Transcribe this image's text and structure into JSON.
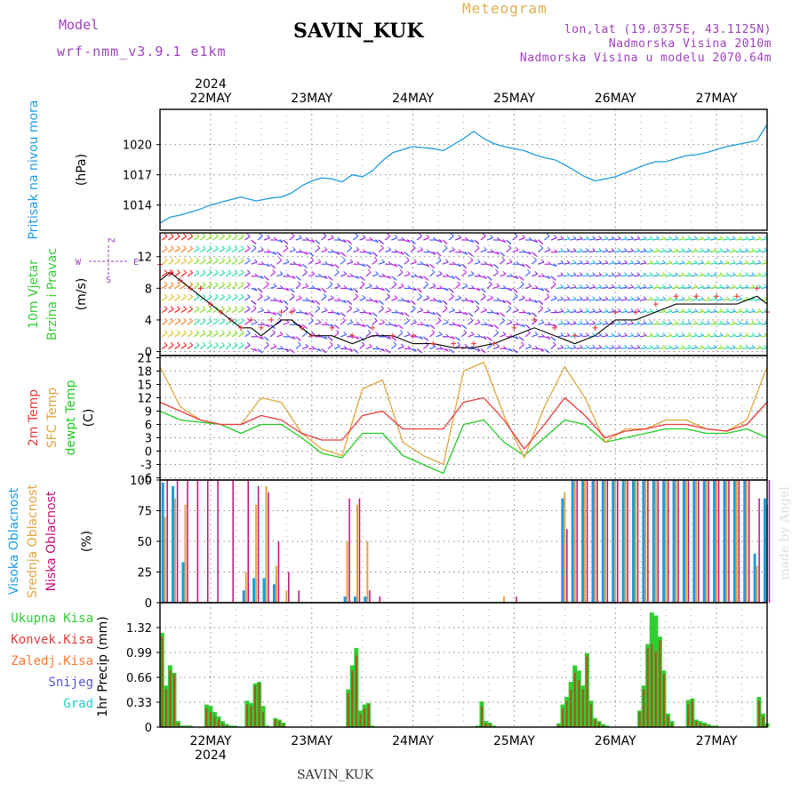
{
  "header": {
    "model_label": "Model",
    "model_name": "wrf-nmm_v3.9.1 e1km",
    "station": "SAVIN_KUK",
    "meteogram_label": "Meteogram",
    "coords": "lon,lat (19.0375E, 43.1125N)",
    "elevation": "Nadmorska Visina 2010m",
    "model_elevation": "Nadmorska Visina u modelu 2070.64m",
    "footer_station": "SAVIN_KUK",
    "credit": "made by Angel"
  },
  "colors": {
    "pressure": "#1e9be0",
    "temp2m": "#e83a3a",
    "sfc_temp": "#e0a640",
    "dewpoint": "#22cc22",
    "high_cloud": "#1e9be0",
    "mid_cloud": "#e0a640",
    "low_cloud": "#c0107a",
    "total_precip": "#33cc33",
    "conv_precip": "#e03c3c",
    "freezing": "#ff7733",
    "snow": "#5555dd",
    "hail": "#22cccc",
    "model": "#a040c0",
    "meteogram_title": "#e0b050",
    "credit": "#dddddd"
  },
  "chart_data": [
    {
      "type": "line",
      "panel": "pressure",
      "ylabel_title": "Pritisak na nivou mora",
      "ylabel_unit": "(hPa)",
      "ylim": [
        1011.5,
        1023.5
      ],
      "yticks": [
        1014,
        1017,
        1020
      ],
      "top_year": "2024",
      "top_ticks": [
        "22MAY",
        "23MAY",
        "24MAY",
        "25MAY",
        "26MAY",
        "27MAY"
      ],
      "x": [
        -0.5,
        -0.4,
        -0.3,
        -0.2,
        -0.1,
        0.0,
        0.15,
        0.3,
        0.45,
        0.6,
        0.7,
        0.8,
        0.9,
        1.0,
        1.1,
        1.2,
        1.3,
        1.4,
        1.5,
        1.6,
        1.7,
        1.8,
        1.9,
        2.0,
        2.1,
        2.2,
        2.3,
        2.4,
        2.5,
        2.6,
        2.7,
        2.8,
        2.9,
        3.0,
        3.1,
        3.2,
        3.3,
        3.4,
        3.5,
        3.6,
        3.7,
        3.8,
        3.9,
        4.0,
        4.1,
        4.2,
        4.3,
        4.4,
        4.5,
        4.6,
        4.7,
        4.8,
        4.9,
        5.0,
        5.1,
        5.2,
        5.3,
        5.4,
        5.5
      ],
      "series": [
        {
          "values": [
            1012.2,
            1012.8,
            1013.0,
            1013.3,
            1013.6,
            1014.0,
            1014.4,
            1014.8,
            1014.4,
            1014.7,
            1014.8,
            1015.2,
            1015.9,
            1016.4,
            1016.7,
            1016.6,
            1016.3,
            1017.0,
            1016.8,
            1017.4,
            1018.4,
            1019.2,
            1019.5,
            1019.8,
            1019.7,
            1019.6,
            1019.4,
            1020.0,
            1020.6,
            1021.3,
            1020.6,
            1020.1,
            1019.8,
            1019.6,
            1019.4,
            1019.0,
            1018.7,
            1018.5,
            1018.0,
            1017.4,
            1016.8,
            1016.4,
            1016.6,
            1016.8,
            1017.2,
            1017.6,
            1018.0,
            1018.3,
            1018.3,
            1018.6,
            1018.9,
            1019.0,
            1019.2,
            1019.5,
            1019.8,
            1020.0,
            1020.2,
            1020.4,
            1022.0
          ]
        }
      ]
    },
    {
      "type": "line",
      "panel": "wind",
      "ylabel_title_1": "10m Vjetar",
      "ylabel_title_2": "Brzina i Pravac",
      "ylabel_unit": "(m/s)",
      "legend_z": "Z",
      "legend_w": "W",
      "legend_e": "E",
      "legend_s": "S",
      "ylim": [
        -0.5,
        15
      ],
      "yticks": [
        0,
        4,
        8,
        12
      ],
      "x": [
        -0.5,
        -0.4,
        -0.3,
        -0.2,
        -0.1,
        0.0,
        0.1,
        0.2,
        0.3,
        0.4,
        0.5,
        0.6,
        0.7,
        0.8,
        0.9,
        1.0,
        1.2,
        1.4,
        1.6,
        1.8,
        2.0,
        2.2,
        2.4,
        2.6,
        2.8,
        3.0,
        3.2,
        3.4,
        3.6,
        3.8,
        4.0,
        4.2,
        4.4,
        4.6,
        4.8,
        5.0,
        5.2,
        5.4,
        5.5
      ],
      "series": [
        {
          "name": "speed",
          "values": [
            9,
            10,
            9,
            8,
            7,
            6,
            5,
            4,
            3,
            3,
            2,
            3,
            4,
            4,
            3,
            2,
            2,
            1,
            2,
            2,
            1,
            1,
            0.5,
            0.5,
            1,
            2,
            3,
            2,
            1,
            2,
            4,
            4,
            5,
            6,
            6,
            6,
            6,
            7,
            6
          ]
        },
        {
          "name": "gust",
          "values": [
            11,
            10,
            9,
            8,
            8,
            6,
            5,
            4,
            3,
            4,
            3,
            4,
            5,
            5,
            3,
            2,
            3,
            2,
            3,
            2,
            2,
            1,
            1,
            1,
            1,
            3,
            4,
            3,
            2,
            3,
            5,
            5,
            6,
            7,
            7,
            7,
            7,
            8,
            5
          ]
        }
      ]
    },
    {
      "type": "line",
      "panel": "temperature",
      "ylabel_title_1": "2m Temp",
      "ylabel_title_2": "SFC Temp",
      "ylabel_title_3": "dewpt Temp",
      "ylabel_unit": "(C)",
      "ylim": [
        -6.5,
        21.5
      ],
      "yticks": [
        -6,
        -3,
        0,
        3,
        6,
        9,
        12,
        15,
        18,
        21
      ],
      "x": [
        -0.5,
        -0.3,
        -0.1,
        0.1,
        0.3,
        0.5,
        0.7,
        0.9,
        1.1,
        1.3,
        1.5,
        1.7,
        1.9,
        2.1,
        2.3,
        2.5,
        2.7,
        2.9,
        3.1,
        3.3,
        3.5,
        3.7,
        3.9,
        4.1,
        4.3,
        4.5,
        4.7,
        4.9,
        5.1,
        5.3,
        5.5
      ],
      "series": [
        {
          "name": "2m Temp",
          "values": [
            11,
            9,
            7,
            6,
            6,
            8,
            7,
            4,
            2.5,
            2.5,
            8,
            9,
            5,
            5,
            5,
            11,
            12,
            7,
            0.5,
            6,
            12,
            8,
            3,
            4.5,
            5,
            6,
            6,
            5,
            4.5,
            6,
            11
          ]
        },
        {
          "name": "SFC Temp",
          "values": [
            19,
            10,
            7,
            6,
            6,
            12,
            11,
            4,
            0.5,
            -1,
            14,
            16,
            2,
            -1,
            -3,
            18,
            20,
            8,
            -1.5,
            10,
            19,
            12,
            2,
            5,
            5,
            7,
            7,
            5,
            4.5,
            7,
            19
          ]
        },
        {
          "name": "dewpt Temp",
          "values": [
            9,
            7,
            6.5,
            6,
            4,
            6,
            6,
            3,
            -0.5,
            -1.5,
            4,
            4,
            -1,
            -3,
            -5,
            6,
            7,
            2,
            -1,
            3,
            7,
            6,
            2,
            3,
            4,
            5,
            5,
            4,
            4,
            5,
            3
          ]
        }
      ]
    },
    {
      "type": "bar",
      "panel": "clouds",
      "ylabel_title_1": "Visoka Oblacnost",
      "ylabel_title_2": "Srednja Oblacnost",
      "ylabel_title_3": "Niska Oblacnost",
      "ylabel_unit": "(%)",
      "ylim": [
        0,
        100
      ],
      "yticks": [
        0,
        25,
        50,
        75,
        100
      ],
      "x": [
        -0.45,
        -0.35,
        -0.25,
        -0.15,
        -0.05,
        0.05,
        0.2,
        0.35,
        0.45,
        0.55,
        0.65,
        0.75,
        0.85,
        1.35,
        1.45,
        1.55,
        1.65,
        1.75,
        2.9,
        3.0,
        3.5,
        3.6,
        3.7,
        3.8,
        3.9,
        4.0,
        4.1,
        4.2,
        4.3,
        4.4,
        4.5,
        4.6,
        4.7,
        4.8,
        4.9,
        5.0,
        5.1,
        5.2,
        5.3,
        5.4,
        5.5
      ],
      "series": [
        {
          "name": "Visoka Oblacnost",
          "values": [
            98,
            95,
            33,
            0,
            0,
            0,
            0,
            10,
            20,
            20,
            15,
            0,
            0,
            5,
            5,
            5,
            0,
            0,
            0,
            0,
            85,
            100,
            100,
            100,
            100,
            100,
            100,
            100,
            100,
            100,
            100,
            100,
            100,
            100,
            100,
            100,
            100,
            100,
            100,
            40,
            85
          ]
        },
        {
          "name": "Srednja Oblacnost",
          "values": [
            70,
            85,
            80,
            0,
            0,
            0,
            0,
            25,
            80,
            95,
            30,
            10,
            0,
            50,
            80,
            50,
            0,
            0,
            5,
            0,
            90,
            100,
            100,
            100,
            100,
            100,
            100,
            100,
            100,
            100,
            100,
            100,
            100,
            100,
            100,
            100,
            100,
            100,
            100,
            30,
            80
          ]
        },
        {
          "name": "Niska Oblacnost",
          "values": [
            100,
            100,
            100,
            100,
            100,
            100,
            100,
            100,
            95,
            90,
            50,
            25,
            10,
            85,
            85,
            10,
            5,
            0,
            0,
            5,
            60,
            100,
            100,
            100,
            100,
            100,
            100,
            100,
            100,
            100,
            100,
            100,
            100,
            100,
            100,
            100,
            100,
            100,
            100,
            85,
            100
          ]
        }
      ]
    },
    {
      "type": "bar",
      "panel": "precipitation",
      "ylabel_title": "1hr Precip",
      "ylabel_unit": "(mm)",
      "legend": [
        "Ukupna Kisa",
        "Konvek.Kisa",
        "Zaledj.Kisa",
        "Snijeg",
        "Grad"
      ],
      "ylim": [
        0,
        1.65
      ],
      "yticks": [
        0,
        0.33,
        0.66,
        0.99,
        1.32
      ],
      "bottom_ticks": [
        "22MAY",
        "23MAY",
        "24MAY",
        "25MAY",
        "26MAY",
        "27MAY"
      ],
      "bottom_year": "2024",
      "x": [
        -0.48,
        -0.44,
        -0.4,
        -0.36,
        -0.32,
        -0.28,
        -0.24,
        -0.2,
        -0.04,
        0.0,
        0.04,
        0.08,
        0.12,
        0.16,
        0.2,
        0.24,
        0.36,
        0.4,
        0.44,
        0.48,
        0.52,
        0.56,
        0.64,
        0.68,
        0.72,
        1.36,
        1.4,
        1.44,
        1.48,
        1.52,
        1.56,
        1.6,
        2.64,
        2.68,
        2.72,
        2.76,
        2.8,
        3.44,
        3.48,
        3.52,
        3.56,
        3.6,
        3.64,
        3.68,
        3.72,
        3.76,
        3.8,
        3.84,
        3.88,
        3.92,
        4.24,
        4.28,
        4.32,
        4.36,
        4.4,
        4.44,
        4.48,
        4.52,
        4.56,
        4.72,
        4.76,
        4.8,
        4.84,
        4.88,
        4.92,
        4.96,
        5.0,
        5.42,
        5.46,
        5.5
      ],
      "series": [
        {
          "name": "Ukupna Kisa",
          "values": [
            1.25,
            0.55,
            0.82,
            0.72,
            0.08,
            0.02,
            0.02,
            0.02,
            0.3,
            0.28,
            0.2,
            0.14,
            0.08,
            0.04,
            0.02,
            0.02,
            0.35,
            0.32,
            0.58,
            0.6,
            0.28,
            0.02,
            0.12,
            0.1,
            0.06,
            0.5,
            0.82,
            1.05,
            0.22,
            0.3,
            0.32,
            0.02,
            0.02,
            0.34,
            0.08,
            0.06,
            0.02,
            0.05,
            0.3,
            0.4,
            0.6,
            0.82,
            0.75,
            0.55,
            0.98,
            0.35,
            0.12,
            0.08,
            0.04,
            0.02,
            0.22,
            0.55,
            1.1,
            1.52,
            1.48,
            1.2,
            0.75,
            0.18,
            0.08,
            0.36,
            0.38,
            0.1,
            0.08,
            0.06,
            0.04,
            0.02,
            0.02,
            0.4,
            0.18,
            0.05
          ]
        },
        {
          "name": "Konvek.Kisa",
          "values": [
            1.2,
            0.5,
            0.75,
            0.7,
            0.05,
            0.0,
            0.0,
            0.0,
            0.25,
            0.2,
            0.15,
            0.1,
            0.05,
            0.02,
            0.0,
            0.0,
            0.3,
            0.28,
            0.55,
            0.58,
            0.2,
            0.0,
            0.1,
            0.08,
            0.04,
            0.45,
            0.75,
            0.95,
            0.18,
            0.25,
            0.3,
            0.0,
            0.0,
            0.28,
            0.05,
            0.04,
            0.0,
            0.03,
            0.25,
            0.35,
            0.5,
            0.72,
            0.62,
            0.5,
            0.95,
            0.3,
            0.1,
            0.06,
            0.02,
            0.0,
            0.2,
            0.5,
            1.05,
            1.1,
            1.0,
            1.15,
            0.7,
            0.15,
            0.05,
            0.3,
            0.35,
            0.08,
            0.05,
            0.04,
            0.02,
            0.0,
            0.0,
            0.35,
            0.14,
            0.03
          ]
        }
      ]
    }
  ]
}
